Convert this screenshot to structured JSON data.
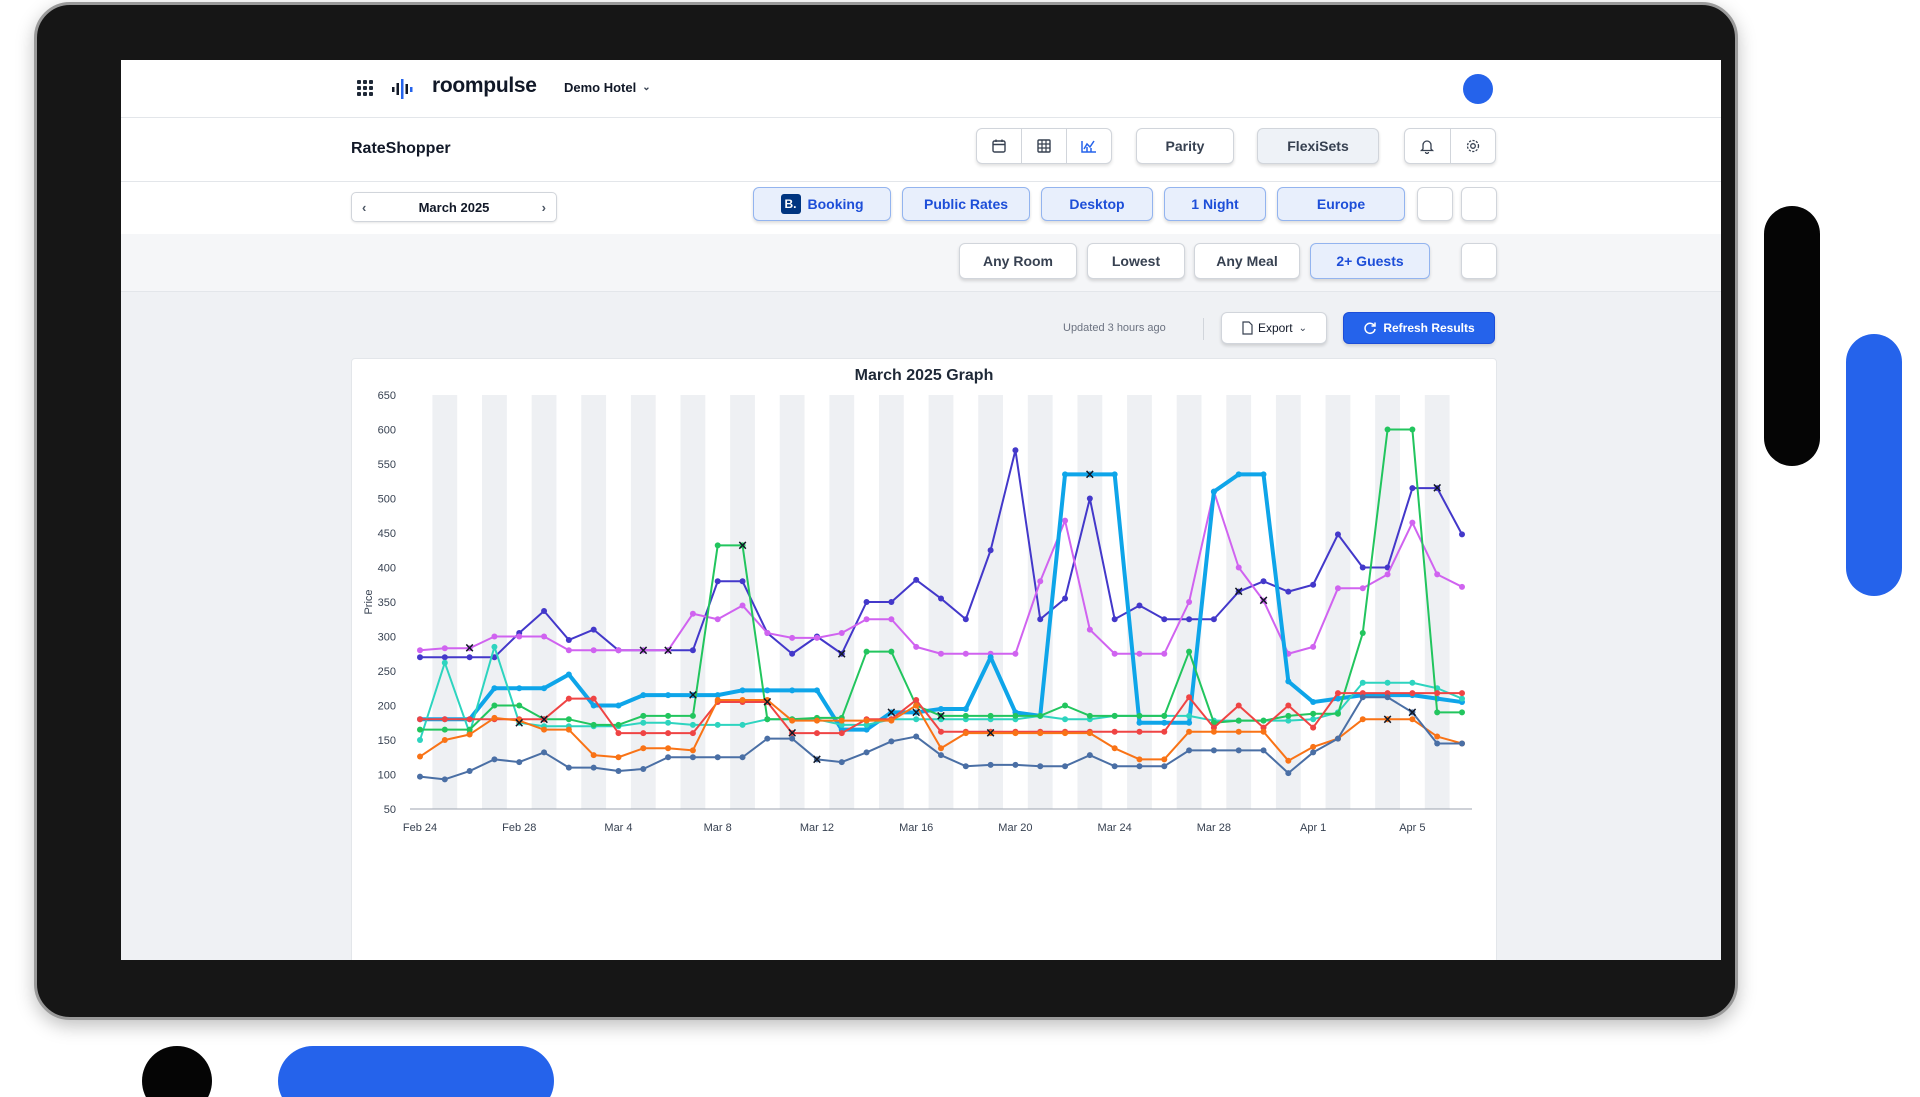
{
  "nav": {
    "logo": "roompulse",
    "hotel": "Demo Hotel",
    "brand_color": "#2563eb"
  },
  "toolbar": {
    "title": "RateShopper",
    "parity_label": "Parity",
    "flexisets_label": "FlexiSets",
    "view_icons": [
      "calendar-icon",
      "grid-icon",
      "chart-icon"
    ]
  },
  "filters": {
    "month": "March 2025",
    "channel_badge": "B.",
    "channel": "Booking",
    "rate_type": "Public Rates",
    "device": "Desktop",
    "length_of_stay": "1 Night",
    "region": "Europe",
    "room": "Any Room",
    "price_mode": "Lowest",
    "meal": "Any Meal",
    "guests": "2+ Guests"
  },
  "status": {
    "updated": "Updated 3 hours ago",
    "export_label": "Export",
    "refresh_label": "Refresh Results"
  },
  "chart_data": {
    "type": "line",
    "title": "March 2025 Graph",
    "xlabel": "",
    "ylabel": "Price",
    "ylim": [
      50,
      650
    ],
    "yticks": [
      50,
      100,
      150,
      200,
      250,
      300,
      350,
      400,
      450,
      500,
      550,
      600,
      650
    ],
    "x_tick_labels": [
      "Feb 24",
      "Feb 28",
      "Mar 4",
      "Mar 8",
      "Mar 12",
      "Mar 16",
      "Mar 20",
      "Mar 24",
      "Mar 28",
      "Apr 1",
      "Apr 5"
    ],
    "x_tick_index": [
      0,
      4,
      8,
      12,
      16,
      20,
      24,
      28,
      32,
      36,
      40
    ],
    "grid": "vertical-bands",
    "series": [
      {
        "color": "#4338ca",
        "width": 2,
        "values": [
          270,
          270,
          270,
          270,
          305,
          337,
          295,
          310,
          280,
          280,
          280,
          280,
          380,
          380,
          305,
          275,
          300,
          275,
          350,
          350,
          382,
          355,
          325,
          425,
          570,
          325,
          355,
          500,
          325,
          345,
          325,
          325,
          325,
          365,
          380,
          365,
          375,
          448,
          400,
          400,
          515,
          515,
          448
        ]
      },
      {
        "color": "#d063f0",
        "width": 2,
        "values": [
          280,
          283,
          283,
          300,
          300,
          300,
          280,
          280,
          280,
          280,
          280,
          333,
          325,
          345,
          305,
          298,
          298,
          305,
          325,
          325,
          285,
          275,
          275,
          275,
          275,
          380,
          468,
          310,
          275,
          275,
          275,
          350,
          510,
          400,
          352,
          275,
          285,
          370,
          370,
          390,
          465,
          390,
          372
        ]
      },
      {
        "color": "#0ea5e9",
        "width": 4,
        "values": [
          180,
          180,
          180,
          225,
          225,
          225,
          245,
          200,
          200,
          215,
          215,
          215,
          215,
          222,
          222,
          222,
          222,
          165,
          165,
          190,
          190,
          195,
          195,
          270,
          190,
          185,
          535,
          535,
          535,
          175,
          175,
          175,
          510,
          535,
          535,
          235,
          205,
          210,
          215,
          215,
          215,
          210,
          205
        ]
      },
      {
        "color": "#2dd4bf",
        "width": 2,
        "values": [
          150,
          262,
          160,
          285,
          175,
          170,
          170,
          170,
          170,
          175,
          175,
          172,
          172,
          172,
          180,
          180,
          180,
          172,
          172,
          180,
          180,
          180,
          180,
          180,
          180,
          185,
          180,
          180,
          185,
          185,
          185,
          185,
          178,
          178,
          178,
          178,
          180,
          190,
          233,
          233,
          233,
          225,
          210
        ]
      },
      {
        "color": "#22c55e",
        "width": 2,
        "values": [
          165,
          165,
          165,
          200,
          200,
          180,
          180,
          172,
          172,
          185,
          185,
          185,
          432,
          432,
          180,
          180,
          182,
          182,
          278,
          278,
          200,
          185,
          185,
          185,
          185,
          185,
          200,
          185,
          185,
          185,
          185,
          278,
          175,
          178,
          178,
          185,
          188,
          188,
          305,
          600,
          600,
          190,
          190
        ]
      },
      {
        "color": "#ef4444",
        "width": 2,
        "values": [
          180,
          180,
          180,
          180,
          180,
          180,
          210,
          210,
          160,
          160,
          160,
          160,
          205,
          205,
          205,
          160,
          160,
          160,
          180,
          180,
          208,
          162,
          162,
          162,
          162,
          162,
          162,
          162,
          162,
          162,
          162,
          212,
          168,
          200,
          168,
          200,
          168,
          218,
          218,
          218,
          218,
          218,
          218
        ]
      },
      {
        "color": "#f97316",
        "width": 2,
        "values": [
          126,
          150,
          158,
          182,
          178,
          165,
          165,
          128,
          125,
          138,
          138,
          135,
          208,
          208,
          208,
          178,
          178,
          178,
          178,
          178,
          200,
          138,
          160,
          160,
          160,
          160,
          160,
          160,
          138,
          122,
          122,
          162,
          162,
          162,
          162,
          120,
          140,
          152,
          180,
          180,
          180,
          155,
          145
        ]
      },
      {
        "color": "#4a6fa5",
        "width": 2,
        "values": [
          97,
          93,
          105,
          122,
          118,
          132,
          110,
          110,
          105,
          108,
          125,
          125,
          125,
          125,
          152,
          152,
          122,
          118,
          132,
          148,
          155,
          128,
          112,
          114,
          114,
          112,
          112,
          128,
          112,
          112,
          112,
          135,
          135,
          135,
          135,
          102,
          132,
          152,
          212,
          212,
          190,
          145,
          145
        ]
      }
    ],
    "markers_x": [
      [
        1,
        2
      ],
      [
        3,
        4
      ],
      [
        4,
        5
      ],
      [
        8,
        9
      ],
      [
        9,
        10
      ],
      [
        10,
        11
      ],
      [
        12,
        13
      ],
      [
        13,
        14
      ],
      [
        13,
        15
      ],
      [
        15,
        16
      ],
      [
        16,
        17
      ],
      [
        18,
        19
      ],
      [
        18,
        20
      ],
      [
        20,
        21
      ],
      [
        22,
        23
      ],
      [
        26,
        27
      ],
      [
        32,
        33
      ],
      [
        33,
        34
      ],
      [
        38,
        39
      ],
      [
        39,
        40
      ],
      [
        40,
        41
      ]
    ]
  }
}
